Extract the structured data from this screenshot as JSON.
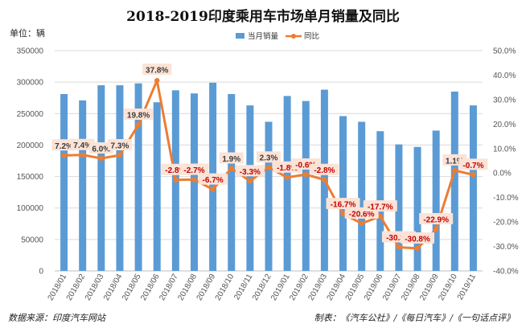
{
  "page": {
    "title": "2018-2019印度乘用车市场单月销量及同比",
    "unit_label": "单位：辆",
    "source": "数据来源：印度汽车网站",
    "credit": "制表：《汽车公社》/《每日汽车》/《一句话点评》"
  },
  "chart_data": {
    "type": "bar",
    "title": "2018-2019印度乘用车市场单月销量及同比",
    "categories": [
      "2018/01",
      "2018/02",
      "2018/03",
      "2018/04",
      "2018/05",
      "2018/06",
      "2018/07",
      "2018/08",
      "2018/09",
      "2018/10",
      "2018/11",
      "2018/12",
      "2019/01",
      "2019/02",
      "2019/03",
      "2019/04",
      "2019/05",
      "2019/06",
      "2019/07",
      "2019/08",
      "2019/09",
      "2019/10",
      "2019/11"
    ],
    "series": [
      {
        "name": "当月销量",
        "kind": "bar",
        "axis": "left",
        "color": "#5b9bd5",
        "values": [
          281000,
          271000,
          295000,
          295000,
          298000,
          268000,
          287000,
          282000,
          299000,
          281000,
          263000,
          237000,
          278000,
          270000,
          288000,
          246000,
          237000,
          222000,
          201000,
          197000,
          223000,
          285000,
          263000
        ]
      },
      {
        "name": "同比",
        "kind": "line",
        "axis": "right",
        "color": "#ed7d31",
        "values": [
          7.2,
          7.4,
          6.0,
          7.3,
          19.8,
          37.8,
          -2.8,
          -2.7,
          -6.7,
          1.9,
          -3.3,
          2.3,
          -1.8,
          -0.6,
          -2.8,
          -16.7,
          -20.6,
          -17.7,
          -30.3,
          -30.8,
          -22.9,
          1.1,
          -0.7
        ],
        "labels": [
          "7.2%",
          "7.4%",
          "6.0%",
          "7.3%",
          "19.8%",
          "37.8%",
          "-2.8%",
          "-2.7%",
          "-6.7%",
          "1.9%",
          "-3.3%",
          "2.3%",
          "-1.8%",
          "-0.6%",
          "-2.8%",
          "-16.7%",
          "-20.6%",
          "-17.7%",
          "-30.3%",
          "-30.8%",
          "-22.9%",
          "1.1%",
          "-0.7%"
        ]
      }
    ],
    "y_left": {
      "min": 0,
      "max": 350000,
      "ticks": [
        "0",
        "50000",
        "100000",
        "150000",
        "200000",
        "250000",
        "300000",
        "350000"
      ]
    },
    "y_right": {
      "min": -40,
      "max": 50,
      "ticks": [
        "-40.0%",
        "-30.0%",
        "-20.0%",
        "-10.0%",
        "0.0%",
        "10.0%",
        "20.0%",
        "30.0%",
        "40.0%",
        "50.0%"
      ]
    },
    "grid": true,
    "legend_position": "top-right"
  }
}
